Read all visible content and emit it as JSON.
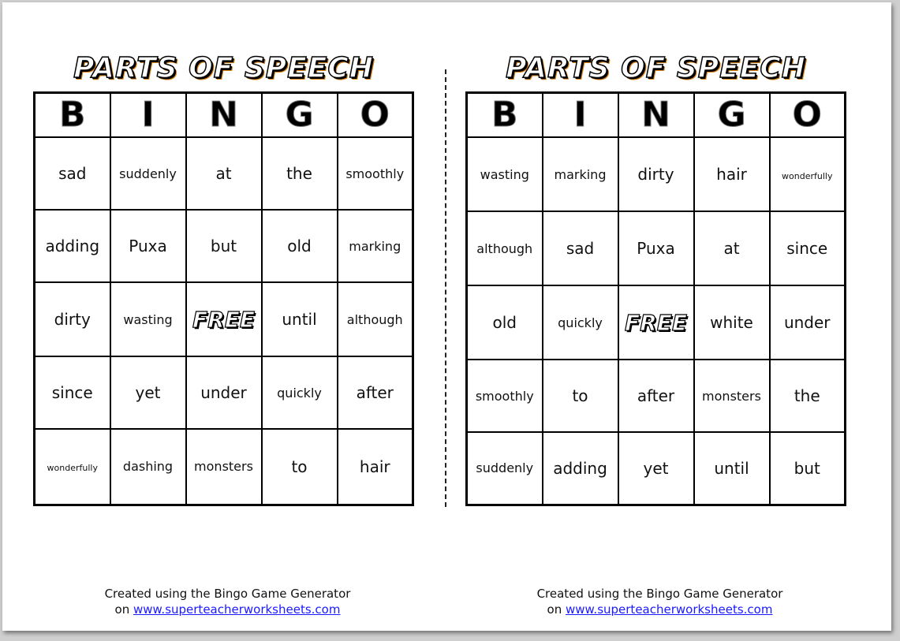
{
  "title": "PARTS OF SPEECH",
  "header_letters": [
    "B",
    "I",
    "N",
    "G",
    "O"
  ],
  "free_label": "FREE",
  "cards": [
    {
      "cells": [
        [
          "sad",
          "suddenly",
          "at",
          "the",
          "smoothly"
        ],
        [
          "adding",
          "Puxa",
          "but",
          "old",
          "marking"
        ],
        [
          "dirty",
          "wasting",
          "FREE",
          "until",
          "although"
        ],
        [
          "since",
          "yet",
          "under",
          "quickly",
          "after"
        ],
        [
          "wonderfully",
          "dashing",
          "monsters",
          "to",
          "hair"
        ]
      ]
    },
    {
      "cells": [
        [
          "wasting",
          "marking",
          "dirty",
          "hair",
          "wonderfully"
        ],
        [
          "although",
          "sad",
          "Puxa",
          "at",
          "since"
        ],
        [
          "old",
          "quickly",
          "FREE",
          "white",
          "under"
        ],
        [
          "smoothly",
          "to",
          "after",
          "monsters",
          "the"
        ],
        [
          "suddenly",
          "adding",
          "yet",
          "until",
          "but"
        ]
      ]
    }
  ],
  "footer": {
    "line1": "Created using the Bingo Game Generator",
    "on": "on",
    "link": "www.superteacherworksheets.com"
  },
  "colors": {
    "link": "#1a1aff",
    "title_shadow": "#e08a1c"
  }
}
